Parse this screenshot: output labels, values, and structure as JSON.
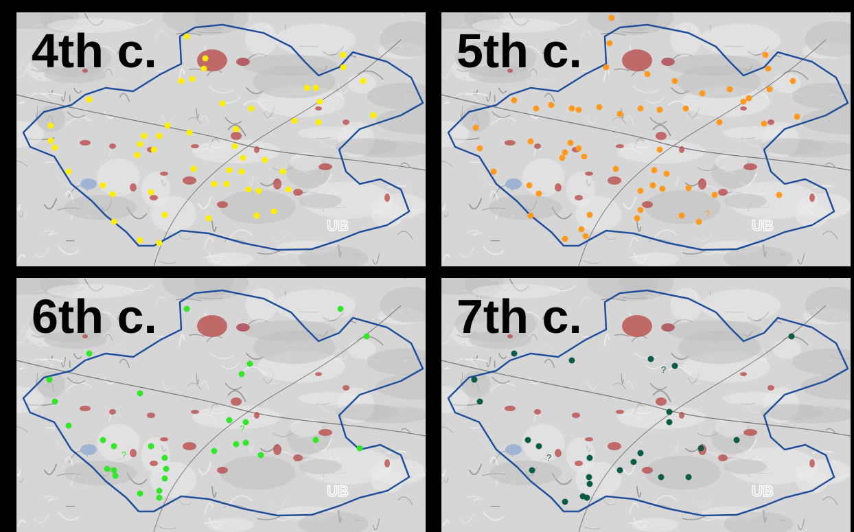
{
  "panels": [
    {
      "label": "4th c.",
      "marker_color": "#ffee00"
    },
    {
      "label": "5th c.",
      "marker_color": "#ff9a1f",
      "annotations": [
        "?"
      ]
    },
    {
      "label": "6th c.",
      "marker_color": "#33e62b",
      "annotations": [
        "?",
        "?"
      ]
    },
    {
      "label": "7th c.",
      "marker_color": "#0c5a48",
      "annotations": [
        "?",
        "?"
      ]
    }
  ],
  "map_stamp": "UB"
}
